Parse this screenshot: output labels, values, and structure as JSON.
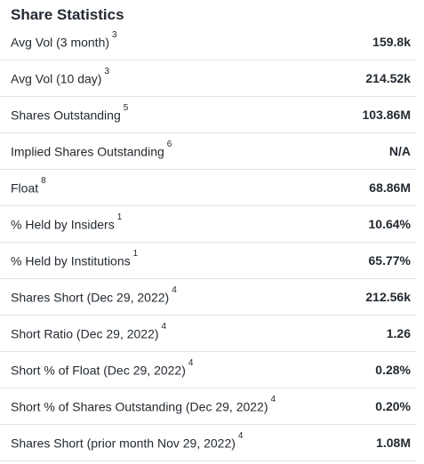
{
  "section": {
    "title": "Share Statistics"
  },
  "rows": [
    {
      "label": "Avg Vol (3 month)",
      "note": "3",
      "value": "159.8k"
    },
    {
      "label": "Avg Vol (10 day)",
      "note": "3",
      "value": "214.52k"
    },
    {
      "label": "Shares Outstanding",
      "note": "5",
      "value": "103.86M"
    },
    {
      "label": "Implied Shares Outstanding",
      "note": "6",
      "value": "N/A"
    },
    {
      "label": "Float",
      "note": "8",
      "value": "68.86M"
    },
    {
      "label": "% Held by Insiders",
      "note": "1",
      "value": "10.64%"
    },
    {
      "label": "% Held by Institutions",
      "note": "1",
      "value": "65.77%"
    },
    {
      "label": "Shares Short (Dec 29, 2022)",
      "note": "4",
      "value": "212.56k"
    },
    {
      "label": "Short Ratio (Dec 29, 2022)",
      "note": "4",
      "value": "1.26"
    },
    {
      "label": "Short % of Float (Dec 29, 2022)",
      "note": "4",
      "value": "0.28%"
    },
    {
      "label": "Short % of Shares Outstanding (Dec 29, 2022)",
      "note": "4",
      "value": "0.20%"
    },
    {
      "label": "Shares Short (prior month Nov 29, 2022)",
      "note": "4",
      "value": "1.08M"
    }
  ]
}
